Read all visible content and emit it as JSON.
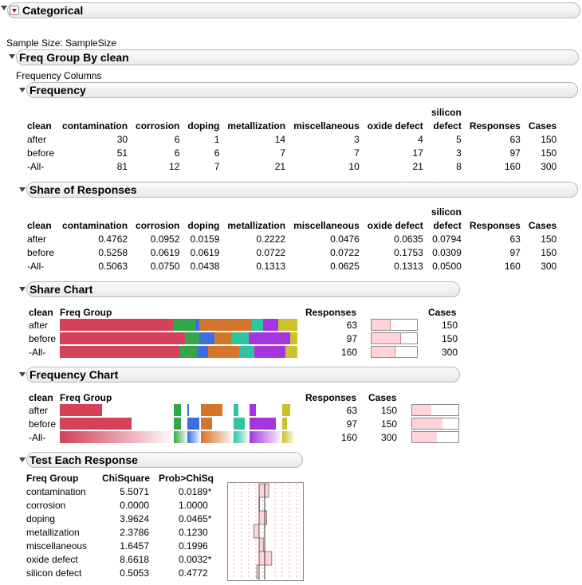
{
  "report": {
    "title": "Categorical",
    "sample_size": "Sample Size: SampleSize",
    "group_title": "Freq Group By clean",
    "frequency_columns": "Frequency Columns"
  },
  "columns": [
    "clean",
    "contamination",
    "corrosion",
    "doping",
    "metallization",
    "miscellaneous",
    "oxide defect",
    "silicon defect",
    "Responses",
    "Cases"
  ],
  "silicon_top": "silicon",
  "silicon_bottom": "defect",
  "frequency": {
    "title": "Frequency",
    "rows": [
      [
        "after",
        "30",
        "6",
        "1",
        "14",
        "3",
        "4",
        "5",
        "63",
        "150"
      ],
      [
        "before",
        "51",
        "6",
        "6",
        "7",
        "7",
        "17",
        "3",
        "97",
        "150"
      ],
      [
        "-All-",
        "81",
        "12",
        "7",
        "21",
        "10",
        "21",
        "8",
        "160",
        "300"
      ]
    ]
  },
  "share_responses": {
    "title": "Share of Responses",
    "rows": [
      [
        "after",
        "0.4762",
        "0.0952",
        "0.0159",
        "0.2222",
        "0.0476",
        "0.0635",
        "0.0794",
        "63",
        "150"
      ],
      [
        "before",
        "0.5258",
        "0.0619",
        "0.0619",
        "0.0722",
        "0.0722",
        "0.1753",
        "0.0309",
        "97",
        "150"
      ],
      [
        "-All-",
        "0.5063",
        "0.0750",
        "0.0438",
        "0.1313",
        "0.0625",
        "0.1313",
        "0.0500",
        "160",
        "300"
      ]
    ]
  },
  "share_chart": {
    "title": "Share Chart",
    "headers": {
      "clean": "clean",
      "group": "Freq Group",
      "responses": "Responses",
      "cases": "Cases"
    },
    "rows": [
      {
        "label": "after",
        "responses": "63",
        "cases": "150",
        "shares": [
          0.4762,
          0.0952,
          0.0159,
          0.2222,
          0.0476,
          0.0635,
          0.0794
        ]
      },
      {
        "label": "before",
        "responses": "97",
        "cases": "150",
        "shares": [
          0.5258,
          0.0619,
          0.0619,
          0.0722,
          0.0722,
          0.1753,
          0.0309
        ]
      },
      {
        "label": "-All-",
        "responses": "160",
        "cases": "300",
        "shares": [
          0.5063,
          0.075,
          0.0438,
          0.1313,
          0.0625,
          0.1313,
          0.05
        ]
      }
    ]
  },
  "frequency_chart": {
    "title": "Frequency Chart",
    "headers": {
      "clean": "clean",
      "group": "Freq Group",
      "responses": "Responses",
      "cases": "Cases"
    },
    "rows": [
      {
        "label": "after",
        "responses": "63",
        "cases": "150",
        "counts": [
          30,
          6,
          1,
          14,
          3,
          4,
          5
        ]
      },
      {
        "label": "before",
        "responses": "97",
        "cases": "150",
        "counts": [
          51,
          6,
          6,
          7,
          7,
          17,
          3
        ]
      },
      {
        "label": "-All-",
        "responses": "160",
        "cases": "300",
        "counts": [
          81,
          12,
          7,
          21,
          10,
          21,
          8
        ]
      }
    ]
  },
  "test_each": {
    "title": "Test Each Response",
    "headers": {
      "group": "Freq Group",
      "chisq": "ChiSquare",
      "prob": "Prob>ChiSq"
    },
    "rows": [
      {
        "group": "contamination",
        "chisq": "5.5071",
        "prob": "0.0189*",
        "shift": 0.5
      },
      {
        "group": "corrosion",
        "chisq": "0.0000",
        "prob": "1.0000",
        "shift": 0.0
      },
      {
        "group": "doping",
        "chisq": "3.9624",
        "prob": "0.0465*",
        "shift": 0.4
      },
      {
        "group": "metallization",
        "chisq": "2.3786",
        "prob": "0.1230",
        "shift": -0.28
      },
      {
        "group": "miscellaneous",
        "chisq": "1.6457",
        "prob": "0.1996",
        "shift": 0.22
      },
      {
        "group": "oxide defect",
        "chisq": "8.6618",
        "prob": "0.0032*",
        "shift": 0.66
      },
      {
        "group": "silicon defect",
        "chisq": "0.5053",
        "prob": "0.4772",
        "shift": -0.12
      }
    ]
  },
  "colors": [
    "#d44158",
    "#33a64a",
    "#3b6ee0",
    "#d47627",
    "#2ec4a0",
    "#a535e0",
    "#c9c229"
  ],
  "chart_data": {
    "type": "bar",
    "categories": [
      "contamination",
      "corrosion",
      "doping",
      "metallization",
      "miscellaneous",
      "oxide defect",
      "silicon defect"
    ],
    "series": [
      {
        "name": "after",
        "values": [
          30,
          6,
          1,
          14,
          3,
          4,
          5
        ]
      },
      {
        "name": "before",
        "values": [
          51,
          6,
          6,
          7,
          7,
          17,
          3
        ]
      },
      {
        "name": "-All-",
        "values": [
          81,
          12,
          7,
          21,
          10,
          21,
          8
        ]
      }
    ]
  }
}
